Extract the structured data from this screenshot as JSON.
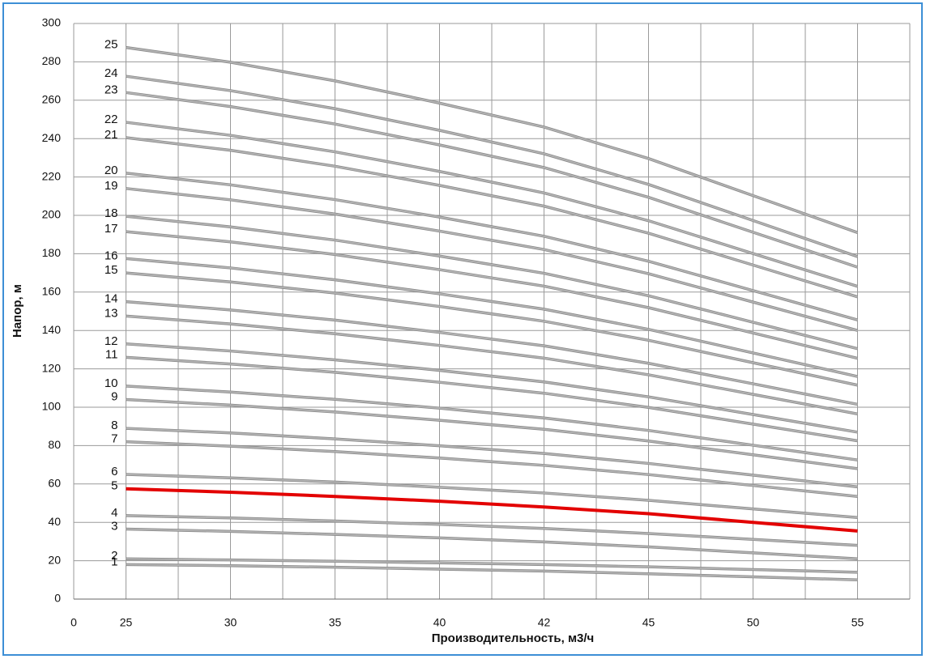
{
  "chart_data": {
    "type": "line",
    "x_label": "Производительность, м3/ч",
    "y_label": "Напор, м",
    "categories": [
      "0",
      "25",
      "30",
      "35",
      "40",
      "42",
      "45",
      "50",
      "55"
    ],
    "ylim": [
      0,
      300
    ],
    "yticks": [
      0,
      20,
      40,
      60,
      80,
      100,
      120,
      140,
      160,
      180,
      200,
      220,
      240,
      260,
      280,
      300
    ],
    "grid": true,
    "series": [
      {
        "name": "1",
        "color": "#b4b4b4",
        "values": [
          null,
          18,
          17.4,
          16.6,
          15.6,
          14.6,
          13.2,
          11.6,
          10
        ]
      },
      {
        "name": "2",
        "color": "#b4b4b4",
        "values": [
          null,
          21,
          20.4,
          19.7,
          18.9,
          18,
          16.8,
          15.4,
          14
        ]
      },
      {
        "name": "3",
        "color": "#b4b4b4",
        "values": [
          null,
          36.5,
          35.3,
          33.7,
          31.9,
          29.8,
          27.2,
          24.1,
          21
        ]
      },
      {
        "name": "4",
        "color": "#b4b4b4",
        "values": [
          null,
          43.5,
          42.3,
          40.7,
          38.9,
          36.8,
          34.2,
          31.1,
          28
        ]
      },
      {
        "name": "5",
        "color": "#e30000",
        "values": [
          null,
          57.5,
          55.7,
          53.5,
          51,
          48,
          44.5,
          40,
          35.5
        ]
      },
      {
        "name": "6",
        "color": "#b4b4b4",
        "values": [
          null,
          65,
          63.2,
          61,
          58.3,
          55.3,
          51.5,
          47,
          42.5
        ]
      },
      {
        "name": "7",
        "color": "#b4b4b4",
        "values": [
          null,
          82,
          79.7,
          76.9,
          73.5,
          69.7,
          64.9,
          59.2,
          53.5
        ]
      },
      {
        "name": "8",
        "color": "#b4b4b4",
        "values": [
          null,
          89,
          86.6,
          83.5,
          79.9,
          75.9,
          70.7,
          64.6,
          58.5
        ]
      },
      {
        "name": "9",
        "color": "#b4b4b4",
        "values": [
          null,
          104,
          101.1,
          97.5,
          93.2,
          88.5,
          82.4,
          75.2,
          68
        ]
      },
      {
        "name": "10",
        "color": "#b4b4b4",
        "values": [
          null,
          111,
          107.9,
          104.1,
          99.5,
          94.4,
          87.9,
          80.2,
          72.5
        ]
      },
      {
        "name": "11",
        "color": "#b4b4b4",
        "values": [
          null,
          126,
          122.5,
          118.2,
          113,
          107.3,
          99.9,
          91.2,
          82.5
        ]
      },
      {
        "name": "12",
        "color": "#b4b4b4",
        "values": [
          null,
          133,
          129.3,
          124.7,
          119.2,
          113.2,
          105.4,
          96.2,
          87
        ]
      },
      {
        "name": "13",
        "color": "#b4b4b4",
        "values": [
          null,
          147.5,
          143.4,
          138.3,
          132.2,
          125.6,
          116.9,
          106.7,
          96.5
        ]
      },
      {
        "name": "14",
        "color": "#b4b4b4",
        "values": [
          null,
          155,
          150.7,
          145.4,
          139,
          132,
          122.9,
          112.2,
          101.5
        ]
      },
      {
        "name": "15",
        "color": "#b4b4b4",
        "values": [
          null,
          170,
          165.3,
          159.5,
          152.5,
          144.8,
          134.9,
          123.2,
          111.5
        ]
      },
      {
        "name": "16",
        "color": "#b4b4b4",
        "values": [
          null,
          177.5,
          172.6,
          166.4,
          159.1,
          151.1,
          140.6,
          128.3,
          116
        ]
      },
      {
        "name": "17",
        "color": "#b4b4b4",
        "values": [
          null,
          191.5,
          186.2,
          179.6,
          171.7,
          163.1,
          151.9,
          138.7,
          125.5
        ]
      },
      {
        "name": "18",
        "color": "#b4b4b4",
        "values": [
          null,
          199.5,
          194,
          187.1,
          178.8,
          169.8,
          158.1,
          144.3,
          130.5
        ]
      },
      {
        "name": "19",
        "color": "#b4b4b4",
        "values": [
          null,
          214,
          208.1,
          200.7,
          191.8,
          182.2,
          169.6,
          154.8,
          140
        ]
      },
      {
        "name": "20",
        "color": "#b4b4b4",
        "values": [
          null,
          222,
          215.9,
          208.2,
          199.1,
          189.1,
          176.1,
          160.8,
          145.5
        ]
      },
      {
        "name": "21",
        "color": "#b4b4b4",
        "values": [
          null,
          240.5,
          233.9,
          225.6,
          215.6,
          204.8,
          190.7,
          174.1,
          157.5
        ]
      },
      {
        "name": "22",
        "color": "#b4b4b4",
        "values": [
          null,
          248.5,
          241.7,
          233.1,
          222.9,
          211.7,
          197.2,
          180.1,
          163
        ]
      },
      {
        "name": "23",
        "color": "#b4b4b4",
        "values": [
          null,
          264,
          256.7,
          247.6,
          236.7,
          224.9,
          209.4,
          191.2,
          173
        ]
      },
      {
        "name": "24",
        "color": "#b4b4b4",
        "values": [
          null,
          272.5,
          265,
          255.6,
          244.3,
          232.1,
          216.1,
          197.3,
          178.5
        ]
      },
      {
        "name": "25",
        "color": "#b4b4b4",
        "values": [
          null,
          287.5,
          279.8,
          270.1,
          258.5,
          246,
          229.6,
          210.3,
          191
        ]
      }
    ]
  }
}
